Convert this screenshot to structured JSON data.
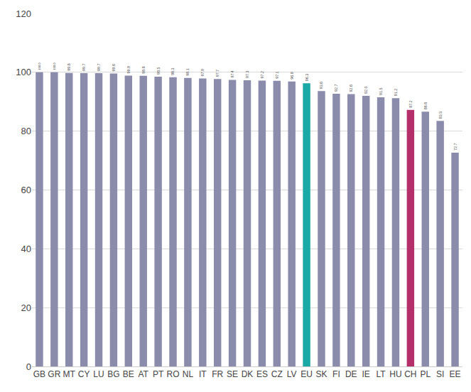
{
  "chart_data": {
    "type": "bar",
    "categories": [
      "GB",
      "GR",
      "MT",
      "CY",
      "LU",
      "BG",
      "BE",
      "AT",
      "PT",
      "RO",
      "NL",
      "IT",
      "FR",
      "SE",
      "DK",
      "ES",
      "CZ",
      "LV",
      "EU",
      "SK",
      "FI",
      "DE",
      "IE",
      "LT",
      "HU",
      "CH",
      "PL",
      "SI",
      "EE"
    ],
    "values": [
      100.0,
      100.0,
      99.8,
      99.7,
      99.7,
      99.6,
      98.9,
      98.8,
      98.5,
      98.3,
      98.1,
      97.9,
      97.7,
      97.4,
      97.3,
      97.2,
      97.1,
      96.9,
      96.3,
      93.6,
      92.7,
      92.6,
      92.0,
      91.5,
      91.2,
      87.2,
      86.6,
      83.5,
      72.7
    ],
    "value_labels": [
      "100.0",
      "100.0",
      "99.8",
      "99.7",
      "99.7",
      "99.6",
      "98.9",
      "98.8",
      "98.5",
      "98.3",
      "98.1",
      "97.9",
      "97.7",
      "97.4",
      "97.3",
      "97.2",
      "97.1",
      "96.9",
      "96.3",
      "93.6",
      "92.7",
      "92.6",
      "92.0",
      "91.5",
      "91.2",
      "87.2",
      "86.6",
      "83.5",
      "72.7"
    ],
    "colors": [
      "#8b8bab",
      "#8b8bab",
      "#8b8bab",
      "#8b8bab",
      "#8b8bab",
      "#8b8bab",
      "#8b8bab",
      "#8b8bab",
      "#8b8bab",
      "#8b8bab",
      "#8b8bab",
      "#8b8bab",
      "#8b8bab",
      "#8b8bab",
      "#8b8bab",
      "#8b8bab",
      "#8b8bab",
      "#8b8bab",
      "#1ba9a6",
      "#8b8bab",
      "#8b8bab",
      "#8b8bab",
      "#8b8bab",
      "#8b8bab",
      "#8b8bab",
      "#b5306b",
      "#8b8bab",
      "#8b8bab",
      "#8b8bab"
    ],
    "ylim": [
      0,
      120
    ],
    "yticks": [
      0,
      20,
      40,
      60,
      80,
      100,
      120
    ],
    "grid": true,
    "data_labels": true
  }
}
